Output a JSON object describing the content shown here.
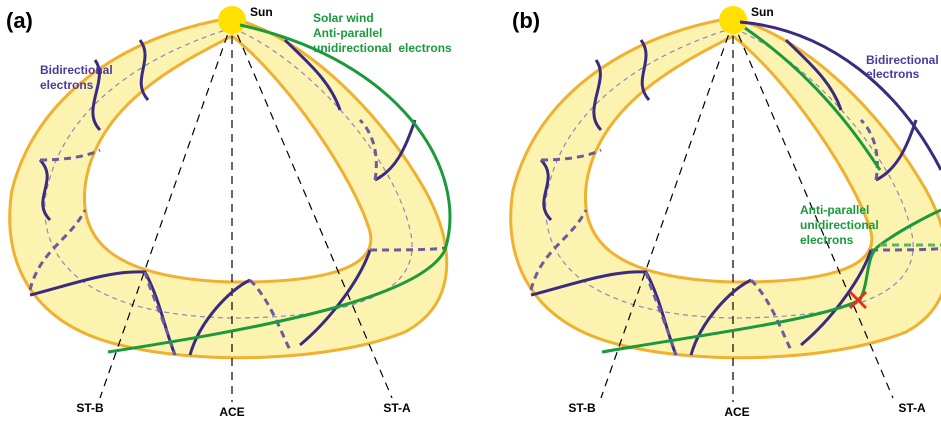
{
  "panels": [
    {
      "label": "(a)",
      "sun": "Sun",
      "annotations": [
        {
          "lines": [
            "Solar wind",
            "Anti-parallel",
            "unidirectional  electrons"
          ]
        },
        {
          "lines": [
            "Bidirectional",
            "electrons"
          ]
        }
      ],
      "spacecraft": [
        "ST-B",
        "ACE",
        "ST-A"
      ]
    },
    {
      "label": "(b)",
      "sun": "Sun",
      "annotations": [
        {
          "lines": [
            "Bidirectional",
            "electrons"
          ]
        },
        {
          "lines": [
            "Anti-parallel",
            "unidirectional",
            "electrons"
          ]
        }
      ],
      "spacecraft": [
        "ST-B",
        "ACE",
        "ST-A"
      ]
    }
  ]
}
